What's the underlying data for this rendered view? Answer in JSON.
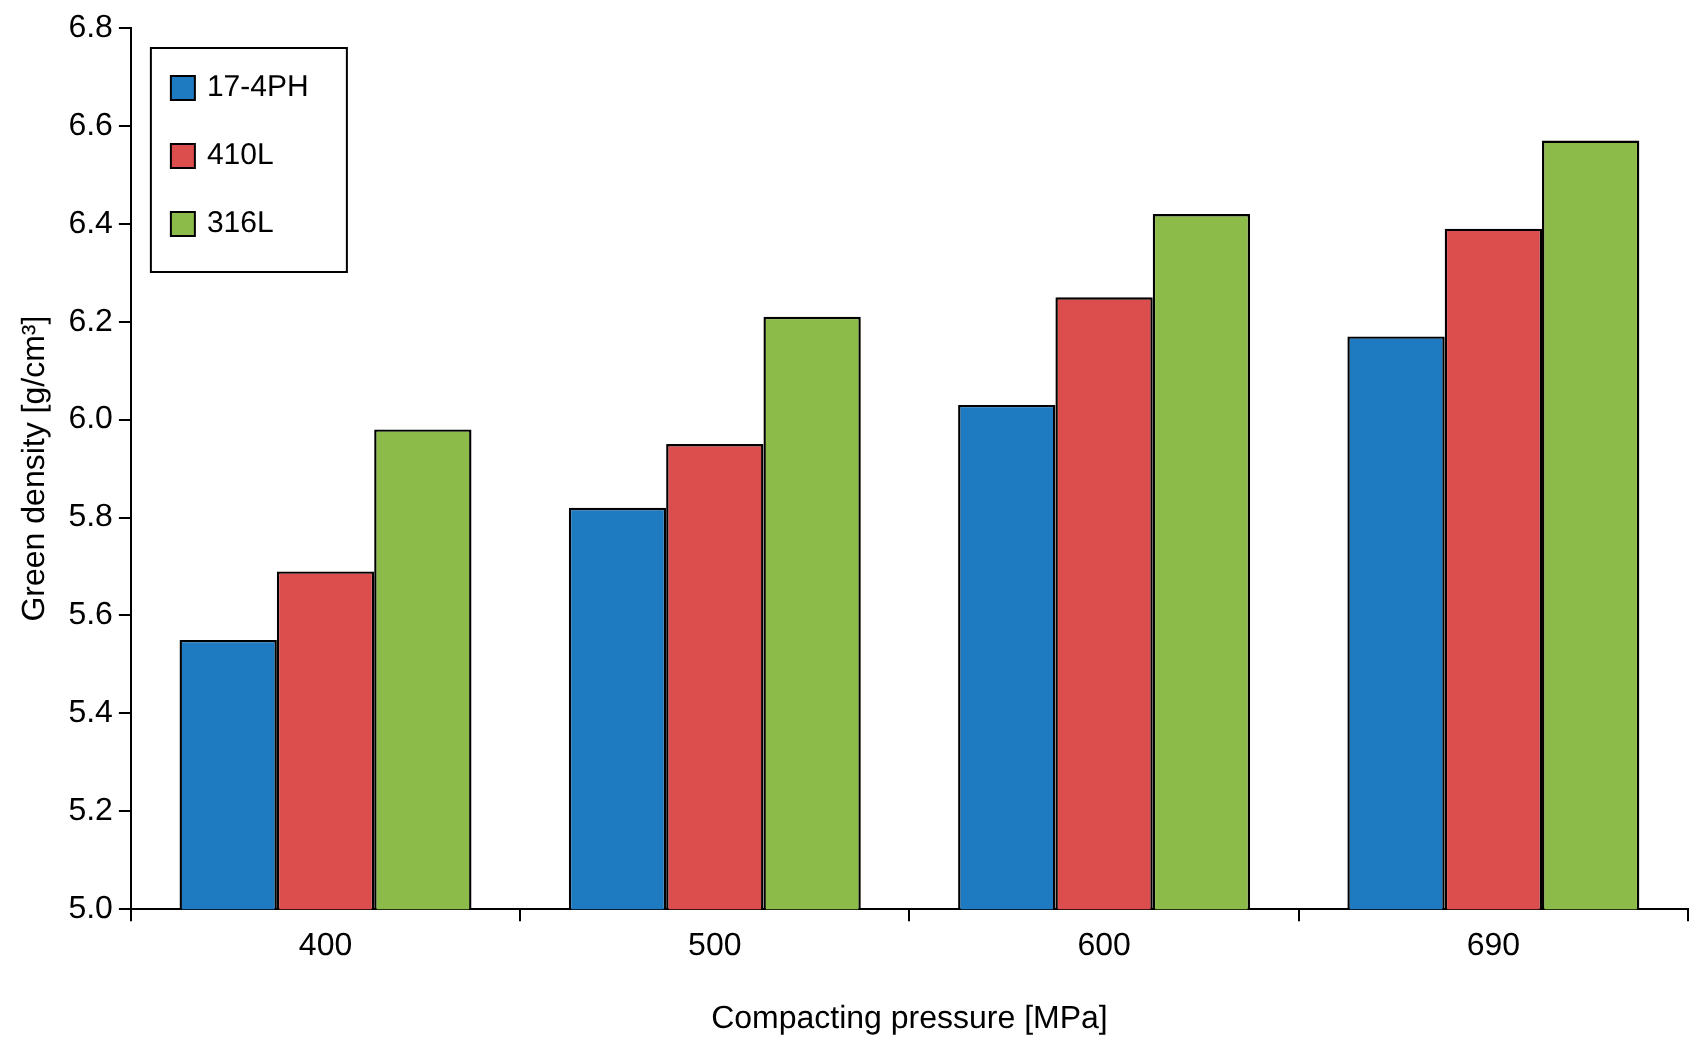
{
  "chart_data": {
    "type": "bar",
    "xlabel": "Compacting pressure [MPa]",
    "ylabel": "Green density [g/cm³]",
    "categories": [
      "400",
      "500",
      "600",
      "690"
    ],
    "series": [
      {
        "name": "17-4PH",
        "color": "#1f7bc1",
        "values": [
          5.55,
          5.82,
          6.03,
          6.17
        ]
      },
      {
        "name": "410L",
        "color": "#dc4e4e",
        "values": [
          5.69,
          5.95,
          6.25,
          6.39
        ]
      },
      {
        "name": "316L",
        "color": "#8cbb4a",
        "values": [
          5.98,
          6.21,
          6.42,
          6.57
        ]
      }
    ],
    "ylim": [
      5.0,
      6.8
    ],
    "yticks": [
      {
        "value": 5,
        "label": "5.0"
      },
      5.2,
      5.4,
      5.6,
      5.8,
      {
        "value": 6,
        "label": "6.0"
      },
      6.2,
      6.4,
      6.6,
      6.8
    ],
    "legend": "top left"
  }
}
